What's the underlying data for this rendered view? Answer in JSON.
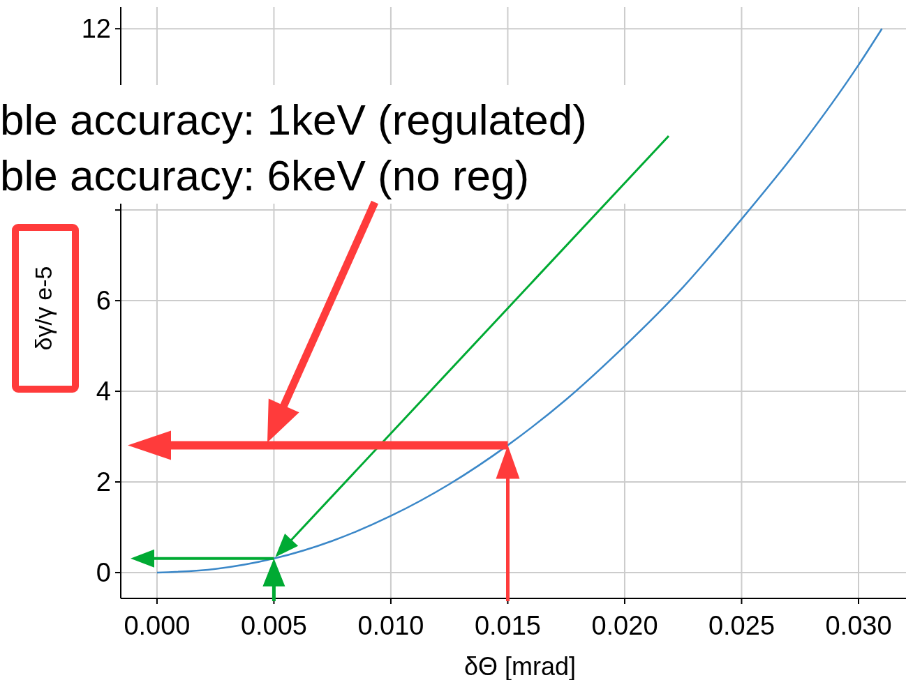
{
  "chart_data": {
    "type": "line",
    "xlabel": "δΘ [mrad]",
    "ylabel": "δγ/γ e-5",
    "x": [
      0,
      0.0025,
      0.005,
      0.0075,
      0.01,
      0.0125,
      0.015,
      0.0175,
      0.02,
      0.0225,
      0.025,
      0.0275,
      0.03,
      0.031
    ],
    "series": [
      {
        "color": "#3a87c8",
        "values": [
          0,
          0.08,
          0.31,
          0.7,
          1.25,
          1.95,
          2.81,
          3.82,
          5.0,
          6.3,
          7.8,
          9.4,
          11.2,
          12.0
        ]
      }
    ],
    "xlim": [
      -0.00155,
      0.03203
    ],
    "ylim": [
      -0.57,
      12.48
    ],
    "xticks": [
      {
        "value": 0,
        "label": "0.000"
      },
      {
        "value": 0.005,
        "label": "0.005"
      },
      {
        "value": 0.01,
        "label": "0.010"
      },
      {
        "value": 0.015,
        "label": "0.015"
      },
      {
        "value": 0.02,
        "label": "0.020"
      },
      {
        "value": 0.025,
        "label": "0.025"
      },
      {
        "value": 0.03,
        "label": "0.030"
      }
    ],
    "yticks": [
      0,
      2,
      4,
      6,
      {
        "value": 8,
        "label": null
      },
      12
    ],
    "grid": true,
    "annotations": [
      "ble accuracy: 1keV (regulated)",
      "ble accuracy: 6keV (no reg)"
    ]
  }
}
